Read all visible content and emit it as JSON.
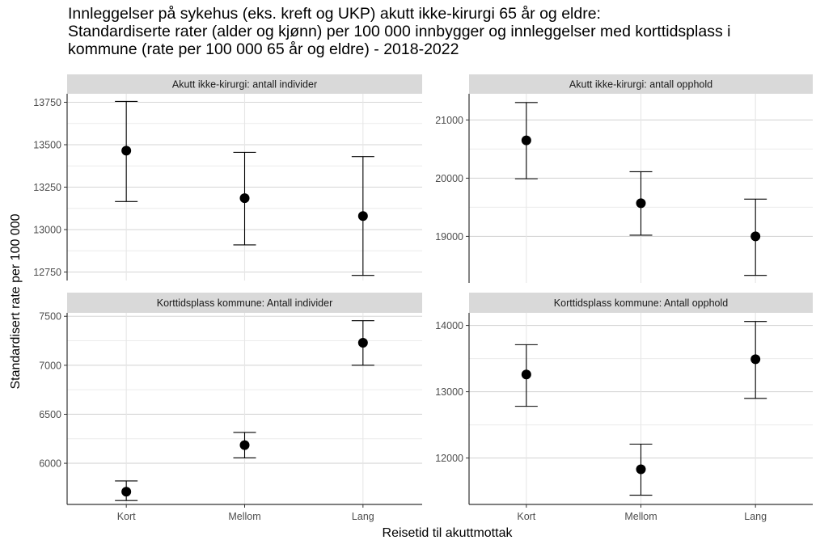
{
  "title_lines": [
    "Innleggelser på sykehus (eks. kreft og UKP) akutt ikke-kirurgi 65 år og eldre:",
    "Standardiserte rater (alder og kjønn) per 100 000 innbygger og innleggelser med korttidsplass i",
    "kommune (rate per 100 000 65 år og eldre) - 2018-2022"
  ],
  "chart_data": {
    "type": "scatter",
    "subtype": "point-with-errorbars, faceted 2x2",
    "xlabel": "Reisetid til akuttmottak",
    "ylabel": "Standardisert rate per 100 000",
    "categories": [
      "Kort",
      "Mellom",
      "Lang"
    ],
    "grid": true,
    "panels": [
      {
        "strip": "Akutt ikke-kirurgi: antall individer",
        "ylim": [
          12700,
          13800
        ],
        "yticks": [
          12750,
          13000,
          13250,
          13500,
          13750
        ],
        "values": [
          13465,
          13185,
          13080
        ],
        "lower": [
          13165,
          12910,
          12730
        ],
        "upper": [
          13755,
          13455,
          13430
        ]
      },
      {
        "strip": "Akutt ikke-kirurgi: antall opphold",
        "ylim": [
          18200,
          21450
        ],
        "yticks": [
          19000,
          20000,
          21000
        ],
        "values": [
          20650,
          19570,
          19000
        ],
        "lower": [
          19990,
          19020,
          18330
        ],
        "upper": [
          21300,
          20110,
          19640
        ]
      },
      {
        "strip": "Korttidsplass kommune: Antall individer",
        "ylim": [
          5580,
          7535
        ],
        "yticks": [
          6000,
          6500,
          7000,
          7500
        ],
        "values": [
          5710,
          6185,
          7230
        ],
        "lower": [
          5620,
          6055,
          7000
        ],
        "upper": [
          5820,
          6315,
          7455
        ]
      },
      {
        "strip": "Korttidsplass kommune: Antall opphold",
        "ylim": [
          11300,
          14190
        ],
        "yticks": [
          12000,
          13000,
          14000
        ],
        "values": [
          13260,
          11830,
          13490
        ],
        "lower": [
          12780,
          11440,
          12900
        ],
        "upper": [
          13710,
          12210,
          14060
        ]
      }
    ]
  }
}
